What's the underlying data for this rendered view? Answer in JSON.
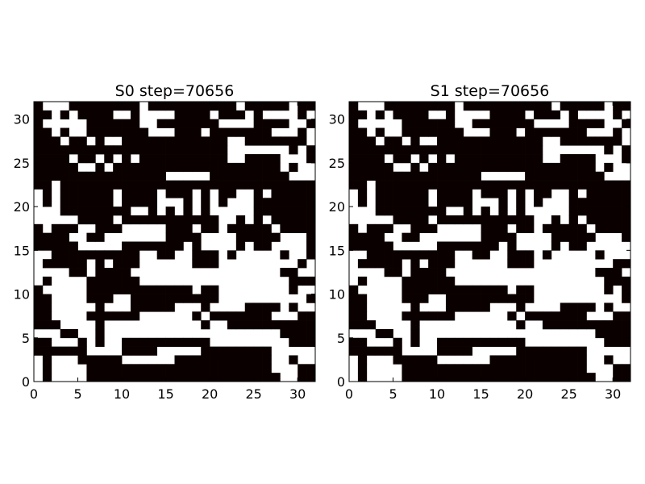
{
  "chart_data": [
    {
      "type": "heatmap",
      "title": "S0 step=70656",
      "xlabel": "",
      "ylabel": "",
      "xlim": [
        0,
        32
      ],
      "ylim": [
        0,
        32
      ],
      "xticks": [
        0,
        5,
        10,
        15,
        20,
        25,
        30
      ],
      "yticks": [
        0,
        5,
        10,
        15,
        20,
        25,
        30
      ],
      "colormap": {
        "0": "#ffffff",
        "1": "#0b0000"
      },
      "grid": false,
      "rows_top_to_bottom": [
        "10001111111101111111111011111011",
        "11010111100100001111011101000010",
        "10000011111100111111100001111001",
        "11010011111110001110111111100010",
        "11101101001111111111110011111110",
        "11111111111111111111110000000101",
        "11110110101011111111110011110001",
        "11111001011111111111111111110100",
        "11111111111111100000111111111000",
        "11011111111111111111111111111111",
        "01011111101111011101011001011111",
        "01011111101111000101010001111111",
        "00011111111001010101000001111111",
        "00000111101111111111100101011111",
        "10111001110000011101101111101111",
        "11110011000000011110000111110001",
        "11111000001111111010000101100001",
        "00111111111100110011101000001001",
        "01111101011100000011100000000010",
        "00001101111000000000000000001100",
        "01000011111100000000000000000111",
        "10000011111111111101100000000100",
        "11000011100111111111100000000001",
        "11000001000111110001000011110100",
        "11000011111100000010111111100011",
        "11100001000000000001001111111111",
        "00011001000000000000000000001111",
        "11000101001111111111000000000111",
        "11111100001111000001111111100000",
        "01000111110000001111111111100100",
        "01000011111111111111111111100011",
        "01000011111111111111111111110011"
      ]
    },
    {
      "type": "heatmap",
      "title": "S1 step=70656",
      "xlabel": "",
      "ylabel": "",
      "xlim": [
        0,
        32
      ],
      "ylim": [
        0,
        32
      ],
      "xticks": [
        0,
        5,
        10,
        15,
        20,
        25,
        30
      ],
      "yticks": [
        0,
        5,
        10,
        15,
        20,
        25,
        30
      ],
      "colormap": {
        "0": "#ffffff",
        "1": "#0b0000"
      },
      "grid": false,
      "rows_top_to_bottom": [
        "10001111111101111111111011111011",
        "11010111100100001111011101000010",
        "10000011111100111111100001111001",
        "11010011111110001110111111100010",
        "11101101001111111111110011111110",
        "11111111111111111111110000000101",
        "11110110101011111111110011110001",
        "11111001011111111111111111110100",
        "11111111111111100000111111111000",
        "11011111111111111111111111111111",
        "01011111101111011101011001011111",
        "01011111101111000101010001111111",
        "00011111111001010101000001111111",
        "00000111101111111111100101011111",
        "10111001110000011101101111101111",
        "11110011000000011110000111110001",
        "11111000001111111010000101100000",
        "00111111111100110011101000001000",
        "01111101011100000011100000000011",
        "00001101111000000000000000001110",
        "01000011111100000000000000000111",
        "10000011111111111101100000000101",
        "11000011100111111111100000000001",
        "11000001000111110001000011110100",
        "11000011111100000010111111100011",
        "11100001000000000001001111111111",
        "00011001000000000000000000001111",
        "11000101001111111111000000000111",
        "11111100001111000001111111100000",
        "01000111110000001111111111100100",
        "01000011111111111111111111100011",
        "01000011111111111111111111110011"
      ]
    }
  ]
}
